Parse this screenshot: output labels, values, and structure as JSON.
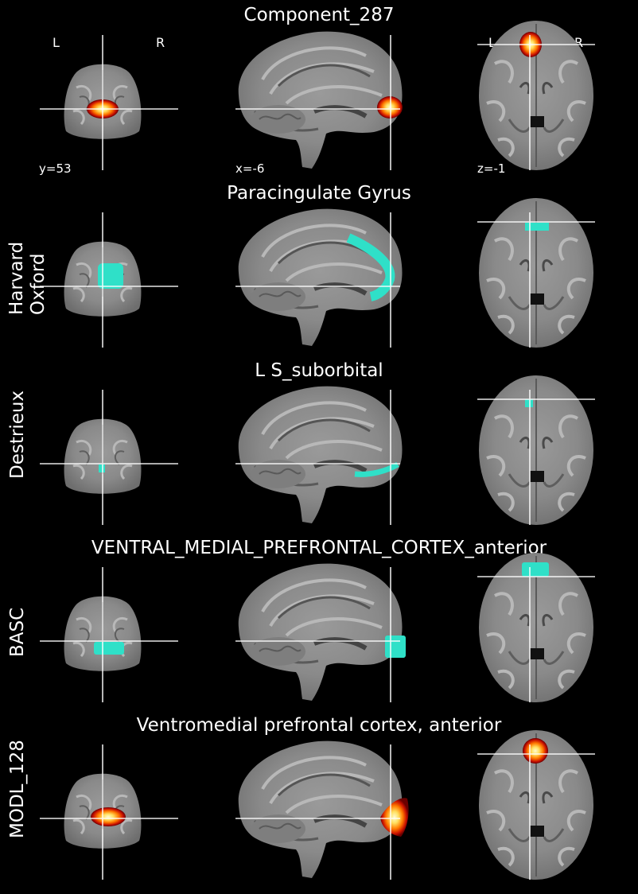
{
  "rows": [
    {
      "title": "Component_287",
      "label": "",
      "overlay": "heat"
    },
    {
      "title": "Paracingulate Gyrus",
      "label": "Harvard Oxford",
      "overlay": "cyan"
    },
    {
      "title": "L S_suborbital",
      "label": "Destrieux",
      "overlay": "cyan"
    },
    {
      "title": "VENTRAL_MEDIAL_PREFRONTAL_CORTEX_anterior",
      "label": "BASC",
      "overlay": "cyan"
    },
    {
      "title": "Ventromedial prefrontal cortex, anterior",
      "label": "MODL_128",
      "overlay": "heat"
    }
  ],
  "coords": {
    "coronal": "y=53",
    "sagittal": "x=-6",
    "axial": "z=-1"
  },
  "orientation": {
    "left": "L",
    "right": "R"
  },
  "colors": {
    "background": "#000000",
    "cyan_overlay": "#2fe0c8",
    "crosshair": "#ffffff",
    "heat_outer": "#8b0000",
    "heat_mid": "#ff6a00",
    "heat_inner": "#fff6a0"
  }
}
